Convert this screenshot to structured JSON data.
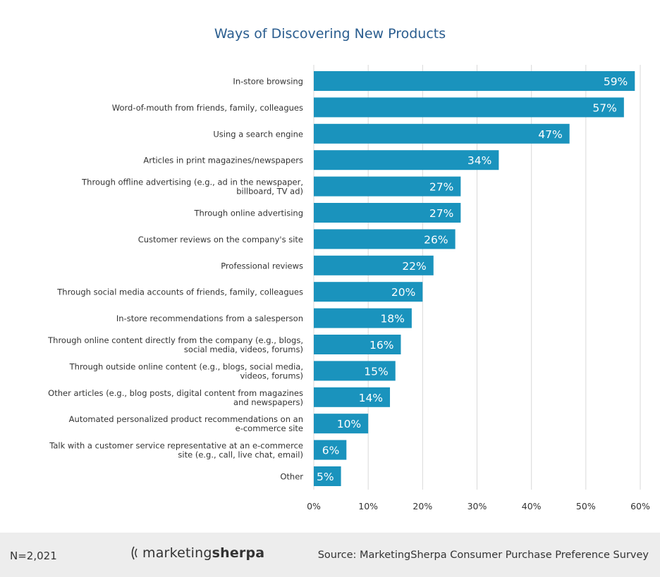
{
  "chart_data": {
    "type": "bar",
    "orientation": "horizontal",
    "title": "Ways of Discovering New Products",
    "categories": [
      "In-store browsing",
      "Word-of-mouth from friends, family, colleagues",
      "Using a search engine",
      "Articles in print magazines/newspapers",
      "Through offline advertising (e.g., ad in the newspaper, billboard, TV ad)",
      "Through online advertising",
      "Customer reviews on the company's site",
      "Professional reviews",
      "Through social media accounts of friends, family, colleagues",
      "In-store recommendations from a salesperson",
      "Through online content directly from the company (e.g., blogs, social media, videos, forums)",
      "Through outside online content (e.g., blogs, social media, videos, forums)",
      "Other articles (e.g., blog posts, digital content from magazines and newspapers)",
      "Automated personalized product recommendations on an e-commerce site",
      "Talk with a customer service representative at an e-commerce site (e.g., call, live chat, email)",
      "Other"
    ],
    "category_lines": [
      [
        "In-store browsing"
      ],
      [
        "Word-of-mouth from friends, family, colleagues"
      ],
      [
        "Using a search engine"
      ],
      [
        "Articles in print magazines/newspapers"
      ],
      [
        "Through offline advertising (e.g., ad in the newspaper,",
        "billboard, TV ad)"
      ],
      [
        "Through online advertising"
      ],
      [
        "Customer reviews on the company's site"
      ],
      [
        "Professional reviews"
      ],
      [
        "Through social media accounts of friends, family, colleagues"
      ],
      [
        "In-store recommendations from a salesperson"
      ],
      [
        "Through online content directly from the company (e.g., blogs,",
        "social media, videos, forums)"
      ],
      [
        "Through outside online content (e.g., blogs, social media,",
        "videos, forums)"
      ],
      [
        "Other articles (e.g., blog posts, digital content from magazines",
        "and newspapers)"
      ],
      [
        "Automated personalized product recommendations on an",
        "e-commerce site"
      ],
      [
        "Talk with a customer service representative at an e-commerce",
        "site (e.g., call, live chat, email)"
      ],
      [
        "Other"
      ]
    ],
    "values": [
      59,
      57,
      47,
      34,
      27,
      27,
      26,
      22,
      20,
      18,
      16,
      15,
      14,
      10,
      6,
      5
    ],
    "value_labels": [
      "59%",
      "57%",
      "47%",
      "34%",
      "27%",
      "27%",
      "26%",
      "22%",
      "20%",
      "18%",
      "16%",
      "15%",
      "14%",
      "10%",
      "6%",
      "5%"
    ],
    "xlim": [
      0,
      60
    ],
    "xticks": [
      0,
      10,
      20,
      30,
      40,
      50,
      60
    ],
    "xtick_labels": [
      "0%",
      "10%",
      "20%",
      "30%",
      "40%",
      "50%",
      "60%"
    ],
    "grid": "vertical",
    "legend": "none",
    "colors": {
      "bar": "#1a93bd",
      "title": "#2a5d8f",
      "label": "#333333",
      "grid": "#d9d9d9",
      "value_label": "#ffffff"
    }
  },
  "footer": {
    "sample_size": "N=2,021",
    "logo_icon": "mouth-bracket-icon",
    "logo_text_regular": "marketing",
    "logo_text_bold": "sherpa",
    "source": "Source: MarketingSherpa Consumer Purchase Preference Survey"
  }
}
